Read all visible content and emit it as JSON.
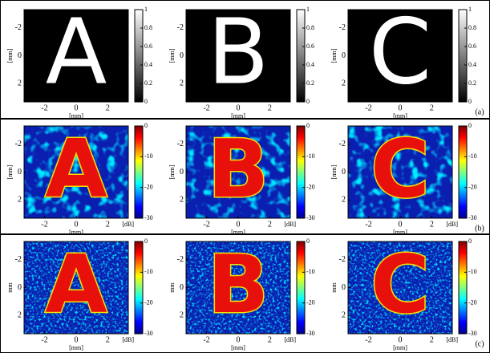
{
  "axes": {
    "x_ticks": [
      -2,
      0,
      2
    ],
    "y_ticks": [
      -2,
      0,
      2
    ],
    "x_label": "[mm]"
  },
  "rows": [
    {
      "label": "(a)",
      "y_label": "[mm]",
      "colorbar": {
        "ticks": [
          1,
          0.8,
          0.6,
          0.4,
          0.2,
          0
        ]
      },
      "panels": [
        {
          "letter": "A"
        },
        {
          "letter": "B"
        },
        {
          "letter": "C"
        }
      ]
    },
    {
      "label": "(b)",
      "y_label": "[mm]",
      "colorbar": {
        "ticks": [
          0,
          -10,
          -20,
          -30
        ],
        "unit": "[dB]"
      },
      "panels": [
        {
          "letter": "A"
        },
        {
          "letter": "B"
        },
        {
          "letter": "C"
        }
      ]
    },
    {
      "label": "(c)",
      "y_label": "mm",
      "colorbar": {
        "ticks": [
          0,
          -10,
          -20,
          -30
        ],
        "unit": "[dB]"
      },
      "panels": [
        {
          "letter": "A"
        },
        {
          "letter": "B"
        },
        {
          "letter": "C"
        }
      ]
    }
  ]
}
